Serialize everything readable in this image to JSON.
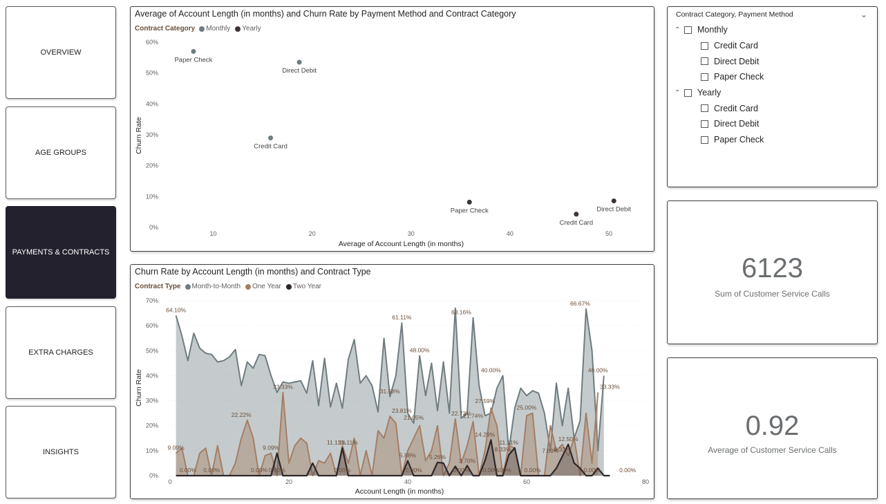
{
  "nav": [
    {
      "label": "OVERVIEW",
      "active": false
    },
    {
      "label": "AGE GROUPS",
      "active": false
    },
    {
      "label": "PAYMENTS & CONTRACTS",
      "active": true
    },
    {
      "label": "EXTRA CHARGES",
      "active": false
    },
    {
      "label": "INSIGHTS",
      "active": false
    }
  ],
  "scatter": {
    "title": "Average of Account Length (in months) and Churn Rate by Payment Method and Contract Category",
    "legend_title": "Contract Category",
    "xlabel": "Average of Account Length (in months)",
    "ylabel": "Churn Rate"
  },
  "line": {
    "title": "Churn Rate by Account Length (in months) and Contract Type",
    "legend_title": "Contract Type",
    "xlabel": "Account Length (in months)",
    "ylabel": "Churn Rate"
  },
  "slicer": {
    "header": "Contract Category, Payment Method",
    "groups": [
      {
        "label": "Monthly",
        "children": [
          "Credit Card",
          "Direct Debit",
          "Paper Check"
        ]
      },
      {
        "label": "Yearly",
        "children": [
          "Credit Card",
          "Direct Debit",
          "Paper Check"
        ]
      }
    ]
  },
  "kpi1": {
    "value": "6123",
    "label": "Sum of Customer Service Calls"
  },
  "kpi2": {
    "value": "0.92",
    "label": "Average of Customer Service Calls"
  },
  "chart_data": [
    {
      "type": "scatter",
      "title": "Average of Account Length (in months) and Churn Rate by Payment Method and Contract Category",
      "xlabel": "Average of Account Length (in months)",
      "ylabel": "Churn Rate",
      "xlim": [
        5,
        53
      ],
      "ylim": [
        0,
        0.6
      ],
      "xticks": [
        10,
        20,
        30,
        40,
        50
      ],
      "yticks": [
        0,
        0.1,
        0.2,
        0.3,
        0.4,
        0.5,
        0.6
      ],
      "ytick_labels": [
        "0%",
        "10%",
        "20%",
        "30%",
        "40%",
        "50%",
        "60%"
      ],
      "legend_placement": "top-left",
      "series": [
        {
          "name": "Monthly",
          "color": "#6f7c80",
          "points": [
            {
              "label": "Paper Check",
              "x": 8.0,
              "y": 0.57
            },
            {
              "label": "Direct Debit",
              "x": 18.7,
              "y": 0.535
            },
            {
              "label": "Credit Card",
              "x": 15.8,
              "y": 0.29
            }
          ]
        },
        {
          "name": "Yearly",
          "color": "#3e3336",
          "points": [
            {
              "label": "Paper Check",
              "x": 35.9,
              "y": 0.082
            },
            {
              "label": "Credit Card",
              "x": 46.7,
              "y": 0.043
            },
            {
              "label": "Direct Debit",
              "x": 50.5,
              "y": 0.086
            }
          ]
        }
      ]
    },
    {
      "type": "area",
      "title": "Churn Rate by Account Length (in months) and Contract Type",
      "xlabel": "Account Length (in months)",
      "ylabel": "Churn Rate",
      "xlim": [
        0,
        80
      ],
      "ylim": [
        0,
        0.7
      ],
      "xticks": [
        0,
        20,
        40,
        60,
        80
      ],
      "yticks": [
        0,
        0.1,
        0.2,
        0.3,
        0.4,
        0.5,
        0.6,
        0.7
      ],
      "ytick_labels": [
        "0%",
        "10%",
        "20%",
        "30%",
        "40%",
        "50%",
        "60%",
        "70%"
      ],
      "legend_placement": "top-left",
      "series": [
        {
          "name": "Month-to-Month",
          "color": "#6f7c80",
          "values": [
            0.641,
            0.56,
            0.46,
            0.57,
            0.51,
            0.49,
            0.485,
            0.455,
            0.46,
            0.475,
            0.505,
            0.36,
            0.455,
            0.43,
            0.485,
            0.48,
            0.4,
            0.333,
            0.375,
            0.37,
            0.375,
            0.38,
            0.33,
            0.46,
            0.28,
            0.47,
            0.275,
            0.37,
            0.27,
            0.465,
            0.545,
            0.37,
            0.4,
            0.36,
            0.255,
            0.55,
            0.316,
            0.4,
            0.611,
            0.25,
            0.21,
            0.48,
            0.32,
            0.45,
            0.26,
            0.455,
            0.25,
            0.67,
            0.23,
            0.25,
            0.632,
            0.36,
            0.24,
            0.25,
            0.35,
            0.4,
            0.1,
            0.27,
            0.35,
            0.32,
            0.34,
            0.33,
            0.25,
            0.1,
            0.37,
            0.2,
            0.35,
            0.15,
            0.22,
            0.667,
            0.5,
            0.1,
            0.4
          ]
        },
        {
          "name": "One Year",
          "color": "#a57e64",
          "values": [
            0.09,
            0.11,
            0.0,
            0.0,
            0.09,
            0.11,
            0.0,
            0.12,
            0.0,
            0.0,
            0.05,
            0.15,
            0.222,
            0.15,
            0.0,
            0.08,
            0.09,
            0.0,
            0.333,
            0.05,
            0.12,
            0.15,
            0.13,
            0.0,
            0.06,
            0.05,
            0.09,
            0.0,
            0.12,
            0.05,
            0.15,
            0.0,
            0.1,
            0.0,
            0.18,
            0.15,
            0.238,
            0.21,
            0.0,
            0.1,
            0.15,
            0.2,
            0.06,
            0.1,
            0.2,
            0.0,
            0.05,
            0.227,
            0.05,
            0.12,
            0.217,
            0.0,
            0.1,
            0.27,
            0.2,
            0.0,
            0.12,
            0.111,
            0.0,
            0.24,
            0.25,
            0.0,
            0.0,
            0.2,
            0.1,
            0.125,
            0.08,
            0.15,
            0.0,
            0.25,
            0.05,
            0.333
          ]
        },
        {
          "name": "Two Year",
          "color": "#2e2629",
          "values": [
            0.0,
            0.0,
            0.0,
            0.0,
            0.0,
            0.0,
            0.0,
            0.0,
            0.0,
            0.0,
            0.0,
            0.0,
            0.0,
            0.0,
            0.0,
            0.0,
            0.0,
            0.09,
            0.0,
            0.0,
            0.0,
            0.0,
            0.0,
            0.05,
            0.0,
            0.0,
            0.0,
            0.0,
            0.111,
            0.0,
            0.0,
            0.0,
            0.0,
            0.0,
            0.0,
            0.0,
            0.0,
            0.0,
            0.0,
            0.059,
            0.0,
            0.0,
            0.0,
            0.0,
            0.053,
            0.05,
            0.0,
            0.037,
            0.0,
            0.04,
            0.0,
            0.0,
            0.06,
            0.143,
            0.0,
            0.0,
            0.083,
            0.111,
            0.0,
            0.0,
            0.0,
            0.0,
            0.0,
            0.0,
            0.03,
            0.077,
            0.125,
            0.05,
            0.03,
            0.0,
            0.0,
            0.03,
            0.0,
            0.0
          ]
        }
      ],
      "data_labels": [
        {
          "text": "64.10%",
          "x": 1,
          "y": 0.641
        },
        {
          "text": "9.09%",
          "x": 1,
          "y": 0.09
        },
        {
          "text": "0.00%",
          "x": 3,
          "y": 0.0
        },
        {
          "text": "0.00%",
          "x": 7,
          "y": 0.0
        },
        {
          "text": "22.22%",
          "x": 12,
          "y": 0.222
        },
        {
          "text": "0.00%",
          "x": 15,
          "y": 0.0
        },
        {
          "text": "9.09%",
          "x": 17,
          "y": 0.09
        },
        {
          "text": "0.00%",
          "x": 18,
          "y": 0.0
        },
        {
          "text": "33.33%",
          "x": 19,
          "y": 0.333
        },
        {
          "text": "11.11%",
          "x": 28,
          "y": 0.111
        },
        {
          "text": "11.11%",
          "x": 30,
          "y": 0.111
        },
        {
          "text": "0.00%",
          "x": 29,
          "y": 0.0
        },
        {
          "text": "31.58%",
          "x": 37,
          "y": 0.316
        },
        {
          "text": "61.11%",
          "x": 39,
          "y": 0.611
        },
        {
          "text": "23.81%",
          "x": 39,
          "y": 0.238
        },
        {
          "text": "21.05%",
          "x": 41,
          "y": 0.21
        },
        {
          "text": "5.88%",
          "x": 40,
          "y": 0.059
        },
        {
          "text": "0.00%",
          "x": 41,
          "y": 0.0
        },
        {
          "text": "48.00%",
          "x": 42,
          "y": 0.48
        },
        {
          "text": "5.26%",
          "x": 45,
          "y": 0.053
        },
        {
          "text": "63.16%",
          "x": 49,
          "y": 0.632
        },
        {
          "text": "22.73%",
          "x": 49,
          "y": 0.227
        },
        {
          "text": "3.70%",
          "x": 50,
          "y": 0.037
        },
        {
          "text": "0.00%",
          "x": 49,
          "y": 0.0
        },
        {
          "text": "21.74%",
          "x": 51,
          "y": 0.217
        },
        {
          "text": "27.59%",
          "x": 53,
          "y": 0.276
        },
        {
          "text": "14.29%",
          "x": 53,
          "y": 0.143
        },
        {
          "text": "0.00%",
          "x": 54,
          "y": 0.0
        },
        {
          "text": "40.00%",
          "x": 54,
          "y": 0.4
        },
        {
          "text": "8.33%",
          "x": 56,
          "y": 0.083
        },
        {
          "text": "0.00%",
          "x": 56,
          "y": 0.0
        },
        {
          "text": "11.11%",
          "x": 57,
          "y": 0.111
        },
        {
          "text": "25.00%",
          "x": 60,
          "y": 0.25
        },
        {
          "text": "0.00%",
          "x": 61,
          "y": 0.0
        },
        {
          "text": "7.69%",
          "x": 64,
          "y": 0.077
        },
        {
          "text": "8.33%",
          "x": 66,
          "y": 0.083
        },
        {
          "text": "12.50%",
          "x": 67,
          "y": 0.125
        },
        {
          "text": "66.67%",
          "x": 69,
          "y": 0.667
        },
        {
          "text": "0.00%",
          "x": 71,
          "y": 0.0
        },
        {
          "text": "40.00%",
          "x": 72,
          "y": 0.4
        },
        {
          "text": "33.33%",
          "x": 74,
          "y": 0.333
        },
        {
          "text": "0.00%",
          "x": 77,
          "y": 0.0
        }
      ]
    }
  ]
}
